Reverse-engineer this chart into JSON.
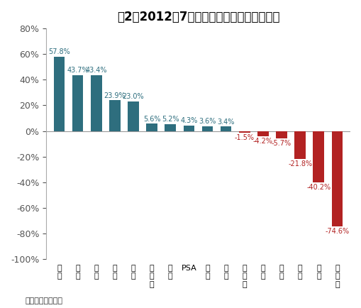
{
  "title": "图2：2012年7月国产外资品牌销量增速比较",
  "categories": [
    "莲\n花",
    "福\n特",
    "宝\n马",
    "大\n众",
    "现\n代",
    "戴\n姆\n勒",
    "通\n用",
    "PSA",
    "本\n田",
    "起\n亚",
    "马\n自\n达",
    "日\n产",
    "丰\n田",
    "三\n菱",
    "铃\n木",
    "沃\n尔\n沃"
  ],
  "values": [
    57.8,
    43.7,
    43.4,
    23.9,
    23.0,
    5.6,
    5.2,
    4.3,
    3.6,
    3.4,
    -1.5,
    -4.2,
    -5.7,
    -21.8,
    -40.2,
    -74.6
  ],
  "positive_color": "#2e6e7e",
  "negative_color": "#b22222",
  "ylim": [
    -100,
    80
  ],
  "yticks": [
    -100,
    -80,
    -60,
    -40,
    -20,
    0,
    20,
    40,
    60,
    80
  ],
  "ytick_labels": [
    "-100%",
    "-80%",
    "-60%",
    "-40%",
    "-20%",
    "0%",
    "20%",
    "40%",
    "60%",
    "80%"
  ],
  "source_text": "来源：盖世汽车网",
  "background_color": "#ffffff",
  "label_fontsize": 7,
  "title_fontsize": 12,
  "bar_width": 0.6
}
